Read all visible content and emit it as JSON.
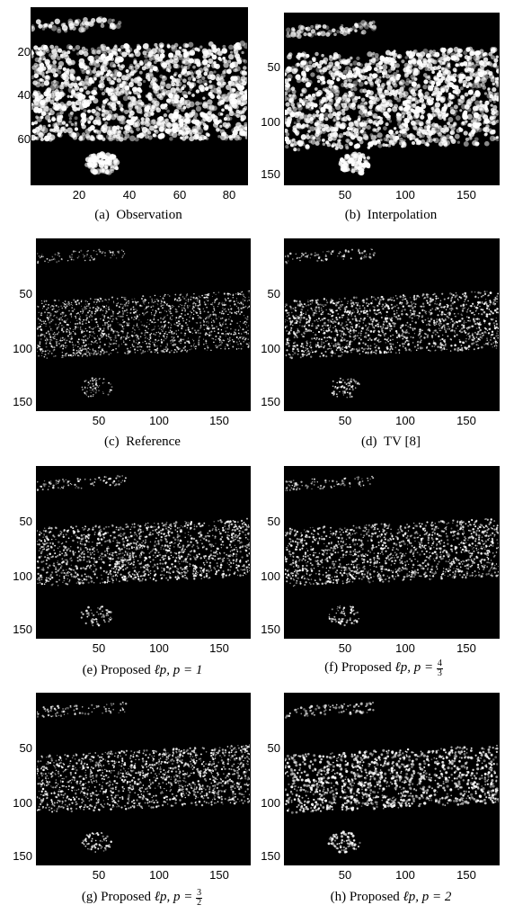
{
  "panels": [
    {
      "id": "a",
      "caption_label": "(a)",
      "caption_text": "Observation",
      "yticks": [
        "20",
        "40",
        "60"
      ],
      "xticks": [
        "20",
        "40",
        "60",
        "80"
      ]
    },
    {
      "id": "b",
      "caption_label": "(b)",
      "caption_text": "Interpolation",
      "yticks": [
        "50",
        "100",
        "150"
      ],
      "xticks": [
        "50",
        "100",
        "150"
      ]
    },
    {
      "id": "c",
      "caption_label": "(c)",
      "caption_text": "Reference",
      "yticks": [
        "50",
        "100",
        "150"
      ],
      "xticks": [
        "50",
        "100",
        "150"
      ]
    },
    {
      "id": "d",
      "caption_label": "(d)",
      "caption_text": "TV [8]",
      "yticks": [
        "50",
        "100",
        "150"
      ],
      "xticks": [
        "50",
        "100",
        "150"
      ]
    },
    {
      "id": "e",
      "caption_label": "(e)",
      "caption_text": "Proposed",
      "caption_math": "ℓp, p = 1",
      "yticks": [
        "50",
        "100",
        "150"
      ],
      "xticks": [
        "50",
        "100",
        "150"
      ]
    },
    {
      "id": "f",
      "caption_label": "(f)",
      "caption_text": "Proposed",
      "caption_math": "ℓp, p =",
      "caption_frac_num": "4",
      "caption_frac_den": "3",
      "yticks": [
        "50",
        "100",
        "150"
      ],
      "xticks": [
        "50",
        "100",
        "150"
      ]
    },
    {
      "id": "g",
      "caption_label": "(g)",
      "caption_text": "Proposed",
      "caption_math": "ℓp, p =",
      "caption_frac_num": "3",
      "caption_frac_den": "2",
      "yticks": [
        "50",
        "100",
        "150"
      ],
      "xticks": [
        "50",
        "100",
        "150"
      ]
    },
    {
      "id": "h",
      "caption_label": "(h)",
      "caption_text": "Proposed",
      "caption_math": "ℓp, p = 2",
      "yticks": [
        "50",
        "100",
        "150"
      ],
      "xticks": [
        "50",
        "100",
        "150"
      ]
    }
  ]
}
